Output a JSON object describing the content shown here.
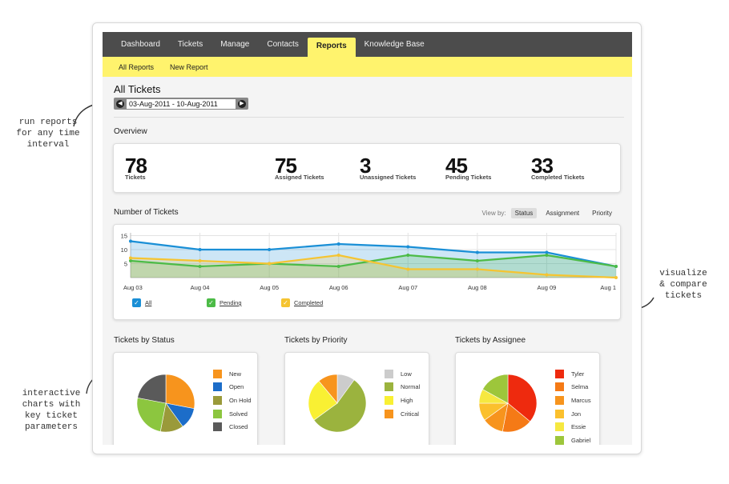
{
  "annotations": {
    "reports": [
      "run reports",
      "for any time",
      "interval"
    ],
    "visualize": [
      "visualize",
      "& compare",
      "tickets"
    ],
    "interactive": [
      "interactive",
      "charts with",
      "key ticket",
      "parameters"
    ]
  },
  "nav": {
    "tabs": [
      "Dashboard",
      "Tickets",
      "Manage",
      "Contacts",
      "Reports",
      "Knowledge Base"
    ],
    "active": "Reports"
  },
  "subnav": [
    "All Reports",
    "New Report"
  ],
  "page": {
    "title": "All Tickets",
    "date_range": "03-Aug-2011 - 10-Aug-2011"
  },
  "overview": {
    "title": "Overview",
    "stats": [
      {
        "value": "78",
        "label": "Tickets"
      },
      {
        "value": "75",
        "label": "Assigned Tickets"
      },
      {
        "value": "3",
        "label": "Unassigned Tickets"
      },
      {
        "value": "45",
        "label": "Pending Tickets"
      },
      {
        "value": "33",
        "label": "Completed Tickets"
      }
    ]
  },
  "number_of_tickets": {
    "title": "Number of Tickets",
    "view_by_label": "View by:",
    "view_by": [
      "Status",
      "Assignment",
      "Priority"
    ],
    "view_by_selected": "Status",
    "legend": [
      {
        "label": "All",
        "color": "#1a8fd6"
      },
      {
        "label": "Pending",
        "color": "#4cbb47"
      },
      {
        "label": "Completed",
        "color": "#f5c431"
      }
    ]
  },
  "pies": [
    {
      "title": "Tickets by Status",
      "legend": [
        "New",
        "Open",
        "On Hold",
        "Solved",
        "Closed"
      ]
    },
    {
      "title": "Tickets by Priority",
      "legend": [
        "Low",
        "Normal",
        "High",
        "Critical"
      ]
    },
    {
      "title": "Tickets by Assignee",
      "legend": [
        "Tyler",
        "Selma",
        "Marcus",
        "Jon",
        "Essie",
        "Gabriel"
      ]
    }
  ],
  "chart_data": [
    {
      "type": "area",
      "title": "Number of Tickets",
      "categories": [
        "Aug 03",
        "Aug 04",
        "Aug 05",
        "Aug 06",
        "Aug 07",
        "Aug 08",
        "Aug 09",
        "Aug 1"
      ],
      "y_ticks": [
        "15",
        "10",
        "5"
      ],
      "ylim": [
        0,
        16
      ],
      "grid": true,
      "series": [
        {
          "name": "All",
          "color": "#1a8fd6",
          "values": [
            13,
            10,
            10,
            12,
            11,
            9,
            9,
            4
          ]
        },
        {
          "name": "Pending",
          "color": "#4cbb47",
          "values": [
            6,
            4,
            5,
            4,
            8,
            6,
            8,
            4
          ]
        },
        {
          "name": "Completed",
          "color": "#f5c431",
          "values": [
            7,
            6,
            5,
            8,
            3,
            3,
            1,
            0
          ]
        }
      ]
    },
    {
      "type": "pie",
      "title": "Tickets by Status",
      "labels": [
        "New",
        "Open",
        "On Hold",
        "Solved",
        "Closed"
      ],
      "colors": [
        "#f7941d",
        "#1c6dc9",
        "#9a9a3a",
        "#8cc63f",
        "#5a5a5a"
      ],
      "values": [
        28,
        12,
        13,
        25,
        22
      ]
    },
    {
      "type": "pie",
      "title": "Tickets by Priority",
      "labels": [
        "Low",
        "Normal",
        "High",
        "Critical"
      ],
      "colors": [
        "#cccccc",
        "#9bb33e",
        "#f9f033",
        "#f7941d"
      ],
      "values": [
        10,
        55,
        24,
        11
      ]
    },
    {
      "type": "pie",
      "title": "Tickets by Assignee",
      "labels": [
        "Tyler",
        "Selma",
        "Marcus",
        "Jon",
        "Essie",
        "Gabriel"
      ],
      "colors": [
        "#ee2a0e",
        "#f57a16",
        "#f7941d",
        "#fbc02d",
        "#f6e840",
        "#9dc63b"
      ],
      "values": [
        36,
        17,
        12,
        10,
        8,
        17
      ]
    }
  ]
}
